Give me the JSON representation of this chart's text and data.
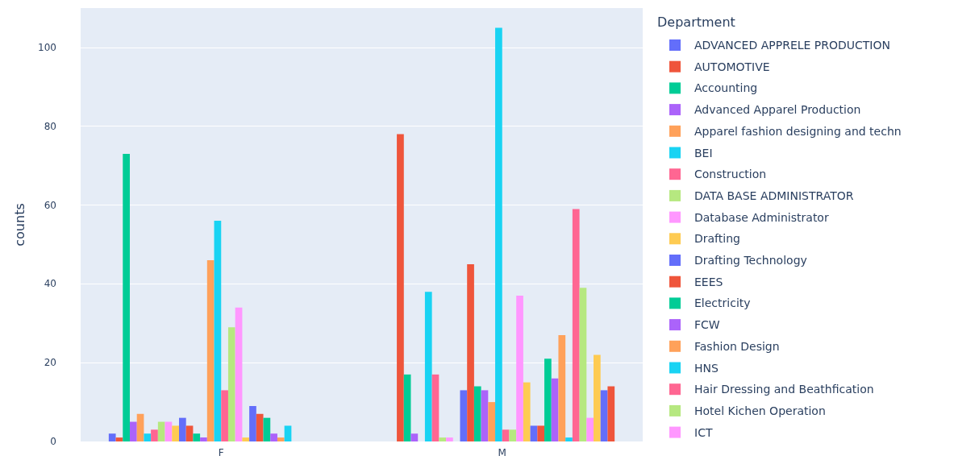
{
  "chart_data": {
    "type": "bar",
    "ylabel": "counts",
    "legend_title": "Department",
    "legend": "right",
    "grid": "y",
    "categories": [
      "F",
      "M"
    ],
    "ylim": [
      0,
      110
    ],
    "yticks": [
      0,
      20,
      40,
      60,
      80,
      100
    ],
    "series": [
      {
        "name": "ADVANCED APPRELE PRODUCTION",
        "color": "#636efa",
        "values": [
          2,
          null
        ]
      },
      {
        "name": "AUTOMOTIVE",
        "color": "#ef553b",
        "values": [
          1,
          78
        ]
      },
      {
        "name": "Accounting",
        "color": "#00cc96",
        "values": [
          73,
          17
        ]
      },
      {
        "name": "Advanced Apparel Production",
        "color": "#ab63fa",
        "values": [
          5,
          2
        ]
      },
      {
        "name": "Apparel fashion designing and techn",
        "color": "#ffa15a",
        "values": [
          7,
          null
        ]
      },
      {
        "name": "BEI",
        "color": "#19d3f3",
        "values": [
          2,
          38
        ]
      },
      {
        "name": "Construction",
        "color": "#ff6692",
        "values": [
          3,
          17
        ]
      },
      {
        "name": "DATA BASE ADMINISTRATOR",
        "color": "#b6e880",
        "values": [
          5,
          1
        ]
      },
      {
        "name": "Database Administrator",
        "color": "#ff97ff",
        "values": [
          5,
          1
        ]
      },
      {
        "name": "Drafting",
        "color": "#fecb52",
        "values": [
          4,
          null
        ]
      },
      {
        "name": "Drafting Technology",
        "color": "#636efa",
        "values": [
          6,
          13
        ]
      },
      {
        "name": "EEES",
        "color": "#ef553b",
        "values": [
          4,
          45
        ]
      },
      {
        "name": "Electricity",
        "color": "#00cc96",
        "values": [
          2,
          14
        ]
      },
      {
        "name": "FCW",
        "color": "#ab63fa",
        "values": [
          1,
          13
        ]
      },
      {
        "name": "Fashion Design",
        "color": "#ffa15a",
        "values": [
          46,
          10
        ]
      },
      {
        "name": "HNS",
        "color": "#19d3f3",
        "values": [
          56,
          105
        ]
      },
      {
        "name": "Hair Dressing and Beathfication",
        "color": "#ff6692",
        "values": [
          13,
          3
        ]
      },
      {
        "name": "Hotel Kichen Operation",
        "color": "#b6e880",
        "values": [
          29,
          3
        ]
      },
      {
        "name": "ICT",
        "color": "#ff97ff",
        "values": [
          34,
          37
        ]
      },
      {
        "color": "#fecb52",
        "values": [
          1,
          15
        ]
      },
      {
        "color": "#636efa",
        "values": [
          9,
          4
        ]
      },
      {
        "color": "#ef553b",
        "values": [
          7,
          4
        ]
      },
      {
        "color": "#00cc96",
        "values": [
          6,
          21
        ]
      },
      {
        "color": "#ab63fa",
        "values": [
          2,
          16
        ]
      },
      {
        "color": "#ffa15a",
        "values": [
          1,
          27
        ]
      },
      {
        "color": "#19d3f3",
        "values": [
          4,
          1
        ]
      },
      {
        "color": "#ff6692",
        "values": [
          null,
          59
        ]
      },
      {
        "color": "#b6e880",
        "values": [
          null,
          39
        ]
      },
      {
        "color": "#ff97ff",
        "values": [
          null,
          6
        ]
      },
      {
        "color": "#fecb52",
        "values": [
          null,
          22
        ]
      },
      {
        "color": "#636efa",
        "values": [
          null,
          13
        ]
      },
      {
        "color": "#ef553b",
        "values": [
          null,
          14
        ]
      }
    ]
  }
}
